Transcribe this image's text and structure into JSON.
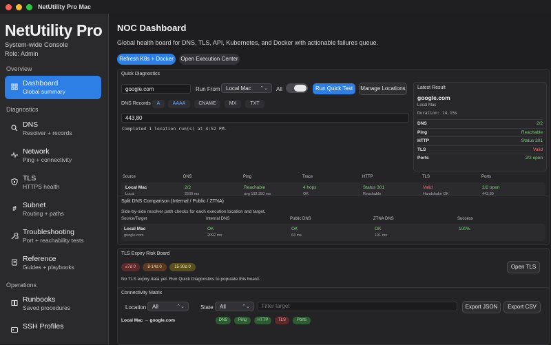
{
  "window": {
    "title": "NetUtility Pro Mac"
  },
  "sidebar": {
    "app_title": "NetUtility Pro",
    "subtitle": "System-wide Console",
    "role": "Role: Admin",
    "sections": {
      "overview": "Overview",
      "diagnostics": "Diagnostics",
      "operations": "Operations"
    },
    "items": [
      {
        "label": "Dashboard",
        "sub": "Global summary",
        "icon": "grid-icon"
      },
      {
        "label": "DNS",
        "sub": "Resolver + records",
        "icon": "search-icon"
      },
      {
        "label": "Network",
        "sub": "Ping + connectivity",
        "icon": "pulse-icon"
      },
      {
        "label": "TLS",
        "sub": "HTTPS health",
        "icon": "shield-icon"
      },
      {
        "label": "Subnet",
        "sub": "Routing + paths",
        "icon": "hash-icon"
      },
      {
        "label": "Troubleshooting",
        "sub": "Port + reachability tests",
        "icon": "tools-icon"
      },
      {
        "label": "Reference",
        "sub": "Guides + playbooks",
        "icon": "book-icon"
      },
      {
        "label": "Runbooks",
        "sub": "Saved procedures",
        "icon": "runbook-icon"
      },
      {
        "label": "SSH Profiles",
        "sub": "",
        "icon": "terminal-icon"
      }
    ]
  },
  "main": {
    "title": "NOC Dashboard",
    "description": "Global health board for DNS, TLS, API, Kubernetes, and Docker with actionable failures queue.",
    "refresh_btn": "Refresh K8s + Docker",
    "exec_btn": "Open Execution Center"
  },
  "quick": {
    "title": "Quick Diagnostics",
    "target": "google.com",
    "run_from_label": "Run From",
    "run_from_value": "Local Mac",
    "all_label": "All",
    "run_btn": "Run Quick Test",
    "manage_btn": "Manage Locations",
    "dns_records_label": "DNS Records",
    "records": [
      "A",
      "AAAA",
      "CNAME",
      "MX",
      "TXT"
    ],
    "ports_value": "443,80",
    "status_line": "Completed 1 location run(s) at 4:52 PM.",
    "table_headers": [
      "Source",
      "DNS",
      "Ping",
      "Trace",
      "HTTP",
      "TLS",
      "Ports"
    ],
    "row": {
      "source": "Local Mac",
      "source_sub": "Local",
      "dns": "2/2",
      "dns_sub": "2509 ms",
      "ping": "Reachable",
      "ping_sub": "avg 192.350 ms",
      "trace": "4 hops",
      "trace_sub": "OK",
      "http": "Status 301",
      "http_sub": "Reachable",
      "tls": "Valid",
      "tls_sub": "Handshake OK",
      "ports": "2/2 open",
      "ports_sub": "443,80"
    },
    "latest": {
      "title": "Latest Result",
      "host": "google.com",
      "source": "Local Mac",
      "duration": "Duration: 14.15s",
      "rows": [
        {
          "k": "DNS",
          "v": "2/2",
          "color": "#7fd07a"
        },
        {
          "k": "Ping",
          "v": "Reachable",
          "color": "#7fd07a"
        },
        {
          "k": "HTTP",
          "v": "Status 301",
          "color": "#7fd07a"
        },
        {
          "k": "TLS",
          "v": "Valid",
          "color": "#ff6b6b"
        },
        {
          "k": "Ports",
          "v": "2/2 open",
          "color": "#7fd07a"
        }
      ]
    }
  },
  "split": {
    "title": "Split DNS Comparison (Internal / Public / ZTNA)",
    "desc": "Side-by-side resolver path checks for each execution location and target.",
    "headers": [
      "Source/Target",
      "Internal DNS",
      "Public DNS",
      "ZTNA DNS",
      "Success"
    ],
    "row": {
      "source": "Local Mac",
      "target": "google.com",
      "internal": "OK",
      "internal_ms": "2092 ms",
      "public": "OK",
      "public_ms": "64 ms",
      "ztna": "OK",
      "ztna_ms": "191 ms",
      "success": "100%"
    }
  },
  "tls": {
    "title": "TLS Expiry Risk Board",
    "badges": [
      {
        "label": "≤7d",
        "count": "0"
      },
      {
        "label": "8-14d",
        "count": "0"
      },
      {
        "label": "15-30d",
        "count": "0"
      }
    ],
    "empty": "No TLS expiry data yet. Run Quick Diagnostics to populate this board.",
    "open_btn": "Open TLS"
  },
  "matrix": {
    "title": "Connectivity Matrix",
    "location_label": "Location",
    "location_value": "All",
    "state_label": "State",
    "state_value": "All",
    "filter_placeholder": "Filter target",
    "export_json": "Export JSON",
    "export_csv": "Export CSV",
    "row_label": "Local Mac → google.com",
    "tags": [
      "DNS",
      "Ping",
      "HTTP",
      "TLS",
      "Ports"
    ]
  }
}
